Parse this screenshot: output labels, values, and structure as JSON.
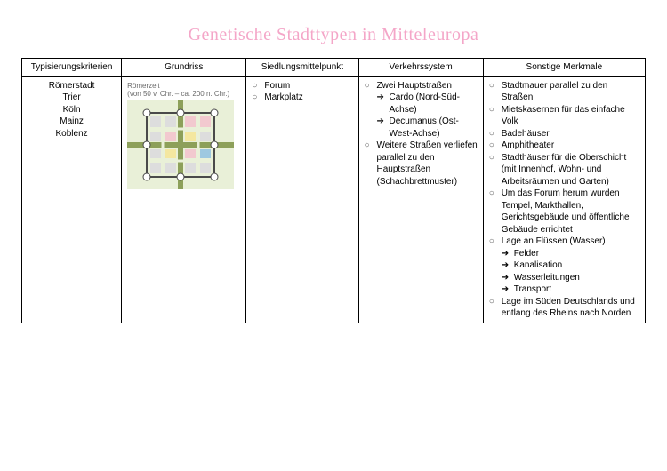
{
  "title": "Genetische Stadttypen in Mitteleuropa",
  "columns": [
    "Typisierungskriterien",
    "Grundriss",
    "Siedlungsmittelpunkt",
    "Verkehrssystem",
    "Sonstige Merkmale"
  ],
  "types": [
    "Römerstadt",
    "Trier",
    "Köln",
    "Mainz",
    "Koblenz"
  ],
  "diagram_caption_l1": "Römerzeit",
  "diagram_caption_l2": "(von 50 v. Chr. – ca. 200 n. Chr.)",
  "settlement": [
    {
      "marker": "○",
      "text": "Forum"
    },
    {
      "marker": "○",
      "text": "Markplatz"
    }
  ],
  "transport": [
    {
      "marker": "○",
      "text": "Zwei Hauptstraßen",
      "subs": [
        {
          "arrow": "➔",
          "text": "Cardo (Nord-Süd-Achse)"
        },
        {
          "arrow": "➔",
          "text": "Decumanus (Ost-West-Achse)"
        }
      ]
    },
    {
      "marker": "○",
      "text": "Weitere Straßen verliefen parallel zu den Hauptstraßen (Schachbrettmuster)"
    }
  ],
  "other": [
    {
      "marker": "○",
      "text": "Stadtmauer parallel zu den Straßen"
    },
    {
      "marker": "○",
      "text": "Mietskasernen für das einfache Volk"
    },
    {
      "marker": "○",
      "text": "Badehäuser"
    },
    {
      "marker": "○",
      "text": "Amphitheater"
    },
    {
      "marker": "○",
      "text": "Stadthäuser für die Oberschicht (mit Innenhof, Wohn- und Arbeitsräumen und Garten)"
    },
    {
      "marker": "○",
      "text": "Um das Forum herum wurden Tempel, Markthallen, Gerichtsgebäude und öffentliche Gebäude errichtet"
    },
    {
      "marker": "○",
      "text": "Lage an Flüssen (Wasser)",
      "subs": [
        {
          "arrow": "➔",
          "text": "Felder"
        },
        {
          "arrow": "➔",
          "text": "Kanalisation"
        },
        {
          "arrow": "➔",
          "text": "Wasserleitungen"
        },
        {
          "arrow": "➔",
          "text": "Transport"
        }
      ]
    },
    {
      "marker": "○",
      "text": "Lage im Süden Deutschlands und entlang des Rheins nach Norden"
    }
  ],
  "diagram": {
    "bg": "#e9f0d8",
    "road": "#8da05a",
    "wall_stroke": "#4a4a4a",
    "tower_fill": "#ffffff",
    "block_colors": {
      "pink": "#f2c9cf",
      "yellow": "#f4e7a0",
      "grey": "#dddddd",
      "blue": "#9ec8e0"
    }
  }
}
